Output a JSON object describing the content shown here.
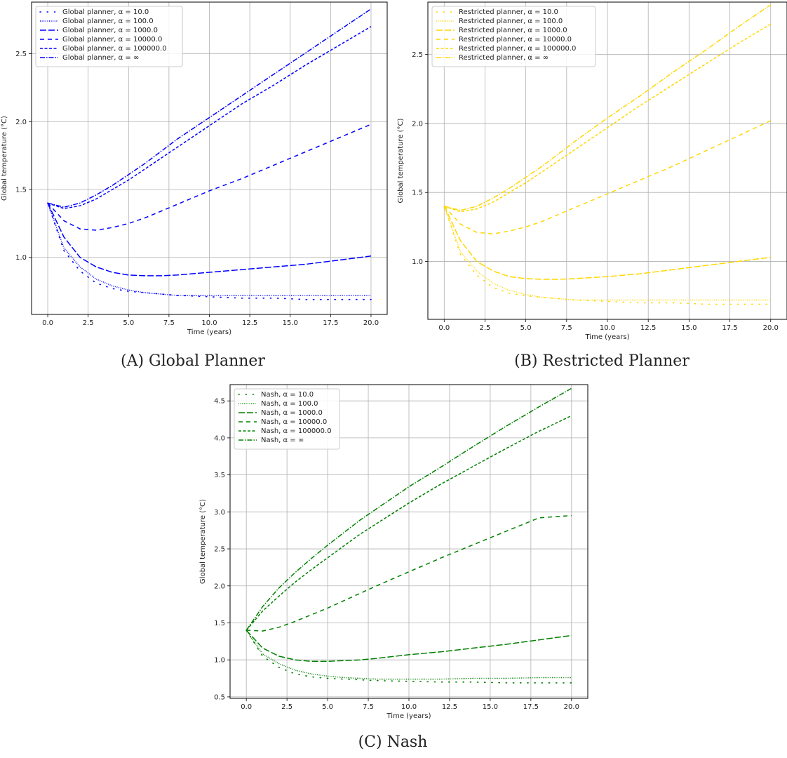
{
  "chart_data": [
    {
      "type": "line",
      "caption": "(A) Global Planner",
      "xlabel": "Time (years)",
      "ylabel": "Global temperature (°C)",
      "xlim": [
        -1,
        21
      ],
      "ylim": [
        0.58,
        2.88
      ],
      "xticks": [
        "0.0",
        "2.5",
        "5.0",
        "7.5",
        "10.0",
        "12.5",
        "15.0",
        "17.5",
        "20.0"
      ],
      "yticks": [
        "1.0",
        "1.5",
        "2.0",
        "2.5"
      ],
      "grid": true,
      "legend_position": "top-left",
      "color": "#0000ff",
      "x": [
        0,
        1,
        2,
        3,
        4,
        5,
        6,
        7,
        8,
        10,
        12,
        14,
        16,
        18,
        20
      ],
      "series": [
        {
          "name": "Global planner, α = 10.0",
          "style": "sparse-dot",
          "values": [
            1.4,
            1.05,
            0.9,
            0.81,
            0.77,
            0.75,
            0.74,
            0.73,
            0.72,
            0.71,
            0.7,
            0.7,
            0.69,
            0.69,
            0.69
          ]
        },
        {
          "name": "Global planner, α = 100.0",
          "style": "dotted",
          "values": [
            1.4,
            1.07,
            0.93,
            0.84,
            0.79,
            0.76,
            0.74,
            0.73,
            0.72,
            0.72,
            0.72,
            0.72,
            0.72,
            0.72,
            0.72
          ]
        },
        {
          "name": "Global planner, α = 1000.0",
          "style": "long-dash",
          "values": [
            1.4,
            1.15,
            1.0,
            0.93,
            0.89,
            0.87,
            0.865,
            0.865,
            0.87,
            0.89,
            0.91,
            0.93,
            0.95,
            0.98,
            1.01
          ]
        },
        {
          "name": "Global planner, α = 10000.0",
          "style": "dash",
          "values": [
            1.4,
            1.27,
            1.21,
            1.2,
            1.22,
            1.25,
            1.29,
            1.34,
            1.39,
            1.49,
            1.58,
            1.68,
            1.78,
            1.88,
            1.98
          ]
        },
        {
          "name": "Global planner, α = 100000.0",
          "style": "short-dash",
          "values": [
            1.4,
            1.36,
            1.38,
            1.43,
            1.5,
            1.57,
            1.65,
            1.73,
            1.81,
            1.97,
            2.13,
            2.27,
            2.42,
            2.56,
            2.7
          ]
        },
        {
          "name": "Global planner, α = ∞",
          "style": "dash-dot",
          "values": [
            1.4,
            1.37,
            1.4,
            1.46,
            1.53,
            1.61,
            1.69,
            1.78,
            1.87,
            2.03,
            2.19,
            2.35,
            2.51,
            2.67,
            2.83
          ]
        }
      ]
    },
    {
      "type": "line",
      "caption": "(B) Restricted Planner",
      "xlabel": "Time (years)",
      "ylabel": "Global temperature (°C)",
      "xlim": [
        -1,
        21
      ],
      "ylim": [
        0.58,
        2.88
      ],
      "xticks": [
        "0.0",
        "2.5",
        "5.0",
        "7.5",
        "10.0",
        "12.5",
        "15.0",
        "17.5",
        "20.0"
      ],
      "yticks": [
        "1.0",
        "1.5",
        "2.0",
        "2.5"
      ],
      "grid": true,
      "legend_position": "top-left",
      "color": "#ffd700",
      "x": [
        0,
        1,
        2,
        3,
        4,
        5,
        6,
        7,
        8,
        10,
        12,
        14,
        16,
        18,
        20
      ],
      "series": [
        {
          "name": "Restricted planner, α = 10.0",
          "style": "sparse-dot",
          "values": [
            1.4,
            1.05,
            0.9,
            0.81,
            0.77,
            0.75,
            0.74,
            0.73,
            0.72,
            0.71,
            0.7,
            0.7,
            0.69,
            0.69,
            0.69
          ]
        },
        {
          "name": "Restricted planner, α = 100.0",
          "style": "dotted",
          "values": [
            1.4,
            1.07,
            0.93,
            0.84,
            0.79,
            0.76,
            0.74,
            0.73,
            0.72,
            0.72,
            0.72,
            0.72,
            0.72,
            0.72,
            0.72
          ]
        },
        {
          "name": "Restricted planner, α = 1000.0",
          "style": "long-dash",
          "values": [
            1.4,
            1.15,
            1.0,
            0.93,
            0.89,
            0.875,
            0.87,
            0.87,
            0.875,
            0.89,
            0.91,
            0.94,
            0.97,
            1.0,
            1.03
          ]
        },
        {
          "name": "Restricted planner, α = 10000.0",
          "style": "dash",
          "values": [
            1.4,
            1.27,
            1.21,
            1.2,
            1.22,
            1.25,
            1.29,
            1.34,
            1.39,
            1.49,
            1.59,
            1.69,
            1.8,
            1.91,
            2.02
          ]
        },
        {
          "name": "Restricted planner, α = 100000.0",
          "style": "short-dash",
          "values": [
            1.4,
            1.36,
            1.38,
            1.43,
            1.5,
            1.57,
            1.65,
            1.73,
            1.81,
            1.97,
            2.13,
            2.28,
            2.43,
            2.58,
            2.72
          ]
        },
        {
          "name": "Restricted planner, α = ∞",
          "style": "dash-dot",
          "values": [
            1.4,
            1.37,
            1.4,
            1.46,
            1.53,
            1.61,
            1.69,
            1.78,
            1.87,
            2.04,
            2.2,
            2.37,
            2.53,
            2.7,
            2.86
          ]
        }
      ]
    },
    {
      "type": "line",
      "caption": "(C) Nash",
      "xlabel": "Time (years)",
      "ylabel": "Global temperature (°C)",
      "xlim": [
        -1,
        21
      ],
      "ylim": [
        0.48,
        4.72
      ],
      "xticks": [
        "0.0",
        "2.5",
        "5.0",
        "7.5",
        "10.0",
        "12.5",
        "15.0",
        "17.5",
        "20.0"
      ],
      "yticks": [
        "0.5",
        "1.0",
        "1.5",
        "2.0",
        "2.5",
        "3.0",
        "3.5",
        "4.0",
        "4.5"
      ],
      "grid": true,
      "legend_position": "top-left",
      "color": "#008000",
      "x": [
        0,
        1,
        2,
        3,
        4,
        5,
        6,
        7,
        8,
        10,
        12,
        14,
        16,
        18,
        20
      ],
      "series": [
        {
          "name": "Nash, α = 10.0",
          "style": "sparse-dot",
          "values": [
            1.4,
            1.05,
            0.9,
            0.81,
            0.77,
            0.75,
            0.74,
            0.73,
            0.72,
            0.71,
            0.7,
            0.7,
            0.69,
            0.69,
            0.69
          ]
        },
        {
          "name": "Nash, α = 100.0",
          "style": "dotted",
          "values": [
            1.4,
            1.08,
            0.95,
            0.86,
            0.81,
            0.78,
            0.76,
            0.75,
            0.74,
            0.74,
            0.74,
            0.75,
            0.75,
            0.76,
            0.76
          ]
        },
        {
          "name": "Nash, α = 1000.0",
          "style": "long-dash",
          "values": [
            1.4,
            1.16,
            1.05,
            1.0,
            0.98,
            0.98,
            0.99,
            1.0,
            1.02,
            1.07,
            1.11,
            1.16,
            1.21,
            1.27,
            1.33
          ]
        },
        {
          "name": "Nash, α = 10000.0",
          "style": "dash",
          "values": [
            1.4,
            1.39,
            1.44,
            1.52,
            1.61,
            1.7,
            1.8,
            1.9,
            2.0,
            2.19,
            2.38,
            2.56,
            2.74,
            2.92,
            2.95
          ]
        },
        {
          "name": "Nash, α = 100000.0",
          "style": "short-dash",
          "values": [
            1.4,
            1.66,
            1.86,
            2.05,
            2.22,
            2.38,
            2.54,
            2.7,
            2.84,
            3.12,
            3.38,
            3.62,
            3.86,
            4.09,
            4.3
          ]
        },
        {
          "name": "Nash, α = ∞",
          "style": "dash-dot",
          "values": [
            1.4,
            1.72,
            1.97,
            2.18,
            2.37,
            2.55,
            2.72,
            2.89,
            3.04,
            3.34,
            3.61,
            3.89,
            4.16,
            4.42,
            4.67
          ]
        }
      ]
    }
  ]
}
